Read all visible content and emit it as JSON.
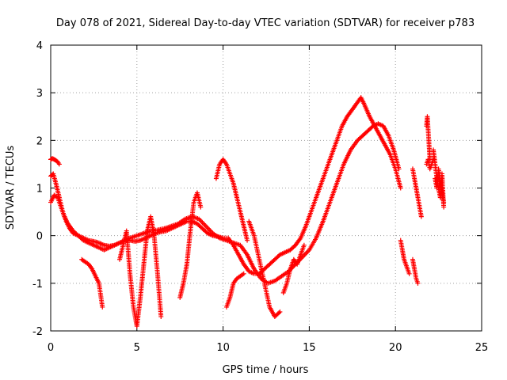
{
  "chart_data": {
    "type": "scatter",
    "title": "Day 078 of 2021, Sidereal Day-to-day VTEC variation (SDTVAR) for receiver p783",
    "xlabel": "GPS time / hours",
    "ylabel": "SDTVAR / TECUs",
    "xlim": [
      0,
      25
    ],
    "ylim": [
      -2,
      4
    ],
    "xticks": [
      0,
      5,
      10,
      15,
      20,
      25
    ],
    "yticks": [
      -2,
      -1,
      0,
      1,
      2,
      3,
      4
    ],
    "grid": true,
    "marker": "+",
    "color": "#ff0000",
    "series": [
      {
        "name": "trace-1",
        "x": [
          0.0,
          0.15,
          0.3,
          0.5,
          0.7,
          0.9,
          1.1,
          1.3,
          1.6,
          1.9,
          2.2,
          2.5,
          2.8,
          3.1,
          3.4,
          3.7,
          4.0,
          4.3,
          4.6,
          4.9,
          5.2,
          5.5,
          5.8,
          6.1,
          6.4,
          6.7,
          7.0,
          7.3,
          7.6,
          7.9,
          8.2,
          8.5,
          8.8,
          9.1,
          9.4,
          9.7,
          10.0,
          10.3,
          10.6,
          10.9,
          11.2,
          11.5,
          11.8,
          12.1,
          12.4,
          12.7,
          13.0,
          13.3,
          13.6,
          13.9,
          14.2,
          14.5,
          14.8,
          15.1,
          15.4,
          15.7,
          16.0,
          16.3,
          16.6,
          16.9,
          17.2,
          17.5,
          17.8,
          18.0,
          18.2,
          18.5,
          18.8,
          19.1,
          19.4,
          19.7,
          20.0,
          20.3
        ],
        "y": [
          1.25,
          1.3,
          1.1,
          0.8,
          0.5,
          0.3,
          0.15,
          0.05,
          0.0,
          -0.05,
          -0.1,
          -0.12,
          -0.15,
          -0.2,
          -0.22,
          -0.2,
          -0.15,
          -0.1,
          -0.1,
          -0.12,
          -0.1,
          -0.05,
          0.0,
          0.05,
          0.08,
          0.1,
          0.15,
          0.2,
          0.25,
          0.3,
          0.3,
          0.25,
          0.15,
          0.05,
          0.0,
          -0.02,
          -0.05,
          -0.05,
          -0.2,
          -0.4,
          -0.6,
          -0.75,
          -0.8,
          -0.8,
          -0.7,
          -0.6,
          -0.5,
          -0.4,
          -0.35,
          -0.3,
          -0.2,
          -0.05,
          0.2,
          0.5,
          0.8,
          1.1,
          1.4,
          1.7,
          2.0,
          2.3,
          2.5,
          2.65,
          2.8,
          2.9,
          2.75,
          2.5,
          2.3,
          2.1,
          1.9,
          1.7,
          1.4,
          1.0
        ]
      },
      {
        "name": "trace-2",
        "x": [
          0.0,
          0.2,
          0.4,
          0.6,
          0.8,
          1.0,
          1.3,
          1.6,
          1.9,
          2.2,
          2.5,
          2.8,
          3.1,
          3.4,
          3.7,
          4.0,
          4.3,
          4.6,
          5.0,
          5.4,
          5.8,
          6.2,
          6.6,
          7.0,
          7.4,
          7.8,
          8.2,
          8.6,
          9.0,
          9.4,
          9.8,
          10.2,
          10.6,
          11.0,
          11.4,
          11.8,
          12.2,
          12.6,
          13.0,
          13.4,
          13.8,
          14.2,
          14.6,
          15.0,
          15.4,
          15.8,
          16.2,
          16.6,
          17.0,
          17.4,
          17.8,
          18.1,
          18.4,
          18.7,
          19.0,
          19.3,
          19.6,
          19.9,
          20.2
        ],
        "y": [
          0.7,
          0.85,
          0.8,
          0.6,
          0.4,
          0.25,
          0.1,
          0.0,
          -0.1,
          -0.15,
          -0.2,
          -0.25,
          -0.3,
          -0.25,
          -0.2,
          -0.15,
          -0.1,
          -0.05,
          0.0,
          0.05,
          0.1,
          0.12,
          0.15,
          0.2,
          0.25,
          0.35,
          0.4,
          0.35,
          0.2,
          0.05,
          -0.05,
          -0.1,
          -0.15,
          -0.2,
          -0.4,
          -0.7,
          -0.9,
          -1.0,
          -0.95,
          -0.85,
          -0.75,
          -0.6,
          -0.45,
          -0.3,
          -0.05,
          0.3,
          0.7,
          1.1,
          1.5,
          1.8,
          2.0,
          2.1,
          2.2,
          2.3,
          2.35,
          2.3,
          2.1,
          1.8,
          1.4
        ]
      },
      {
        "name": "trace-3",
        "x": [
          0.0,
          0.1,
          0.2,
          0.3,
          0.4,
          0.5
        ],
        "y": [
          1.6,
          1.62,
          1.6,
          1.58,
          1.55,
          1.5
        ]
      },
      {
        "name": "trace-4",
        "x": [
          1.8,
          2.0,
          2.2,
          2.4,
          2.6,
          2.8,
          3.0
        ],
        "y": [
          -0.5,
          -0.55,
          -0.6,
          -0.7,
          -0.85,
          -1.0,
          -1.5
        ]
      },
      {
        "name": "trace-5",
        "x": [
          4.0,
          4.2,
          4.4,
          4.6,
          4.8,
          5.0,
          5.2,
          5.4,
          5.6,
          5.8,
          6.0,
          6.2,
          6.4
        ],
        "y": [
          -0.5,
          -0.2,
          0.1,
          -0.8,
          -1.5,
          -1.9,
          -1.3,
          -0.6,
          0.1,
          0.4,
          0.0,
          -0.8,
          -1.7
        ]
      },
      {
        "name": "trace-6",
        "x": [
          7.5,
          7.7,
          7.9,
          8.1,
          8.3,
          8.5,
          8.7
        ],
        "y": [
          -1.3,
          -1.0,
          -0.6,
          0.1,
          0.7,
          0.9,
          0.6
        ]
      },
      {
        "name": "trace-7",
        "x": [
          9.6,
          9.8,
          10.0,
          10.2,
          10.4,
          10.6,
          10.8,
          11.0,
          11.2,
          11.4
        ],
        "y": [
          1.2,
          1.5,
          1.6,
          1.5,
          1.3,
          1.1,
          0.8,
          0.5,
          0.2,
          -0.1
        ]
      },
      {
        "name": "trace-8",
        "x": [
          10.2,
          10.4,
          10.6,
          10.8,
          11.0,
          11.2
        ],
        "y": [
          -1.5,
          -1.3,
          -1.0,
          -0.9,
          -0.85,
          -0.8
        ]
      },
      {
        "name": "trace-9",
        "x": [
          11.5,
          11.8,
          12.1,
          12.4,
          12.7,
          13.0,
          13.3
        ],
        "y": [
          0.3,
          0.0,
          -0.5,
          -1.0,
          -1.5,
          -1.7,
          -1.6
        ]
      },
      {
        "name": "trace-10",
        "x": [
          13.5,
          13.7,
          13.9,
          14.1,
          14.3,
          14.5,
          14.7
        ],
        "y": [
          -1.2,
          -1.0,
          -0.7,
          -0.5,
          -0.6,
          -0.4,
          -0.2
        ]
      },
      {
        "name": "trace-11",
        "x": [
          20.3,
          20.4,
          20.5,
          20.6,
          20.7,
          20.8
        ],
        "y": [
          -0.1,
          -0.3,
          -0.5,
          -0.6,
          -0.7,
          -0.8
        ]
      },
      {
        "name": "trace-12",
        "x": [
          21.0,
          21.1,
          21.2,
          21.3
        ],
        "y": [
          -0.5,
          -0.7,
          -0.9,
          -1.0
        ]
      },
      {
        "name": "trace-13",
        "x": [
          21.0,
          21.1,
          21.2,
          21.3,
          21.4,
          21.5
        ],
        "y": [
          1.4,
          1.2,
          1.0,
          0.8,
          0.6,
          0.4
        ]
      },
      {
        "name": "trace-14",
        "x": [
          21.8,
          21.85,
          21.9,
          21.95,
          22.0
        ],
        "y": [
          2.3,
          2.5,
          2.2,
          1.9,
          1.6
        ]
      },
      {
        "name": "trace-15",
        "x": [
          21.8,
          21.9,
          22.0,
          22.1,
          22.2
        ],
        "y": [
          1.5,
          1.6,
          1.4,
          1.5,
          1.6
        ]
      },
      {
        "name": "trace-16",
        "x": [
          22.2,
          22.3,
          22.4,
          22.5,
          22.6,
          22.7,
          22.8
        ],
        "y": [
          1.8,
          1.5,
          1.2,
          1.0,
          0.8,
          1.3,
          0.6
        ]
      },
      {
        "name": "trace-17",
        "x": [
          22.3,
          22.4,
          22.5,
          22.6,
          22.7,
          22.8
        ],
        "y": [
          1.2,
          1.0,
          1.4,
          1.1,
          0.9,
          0.7
        ]
      }
    ]
  }
}
